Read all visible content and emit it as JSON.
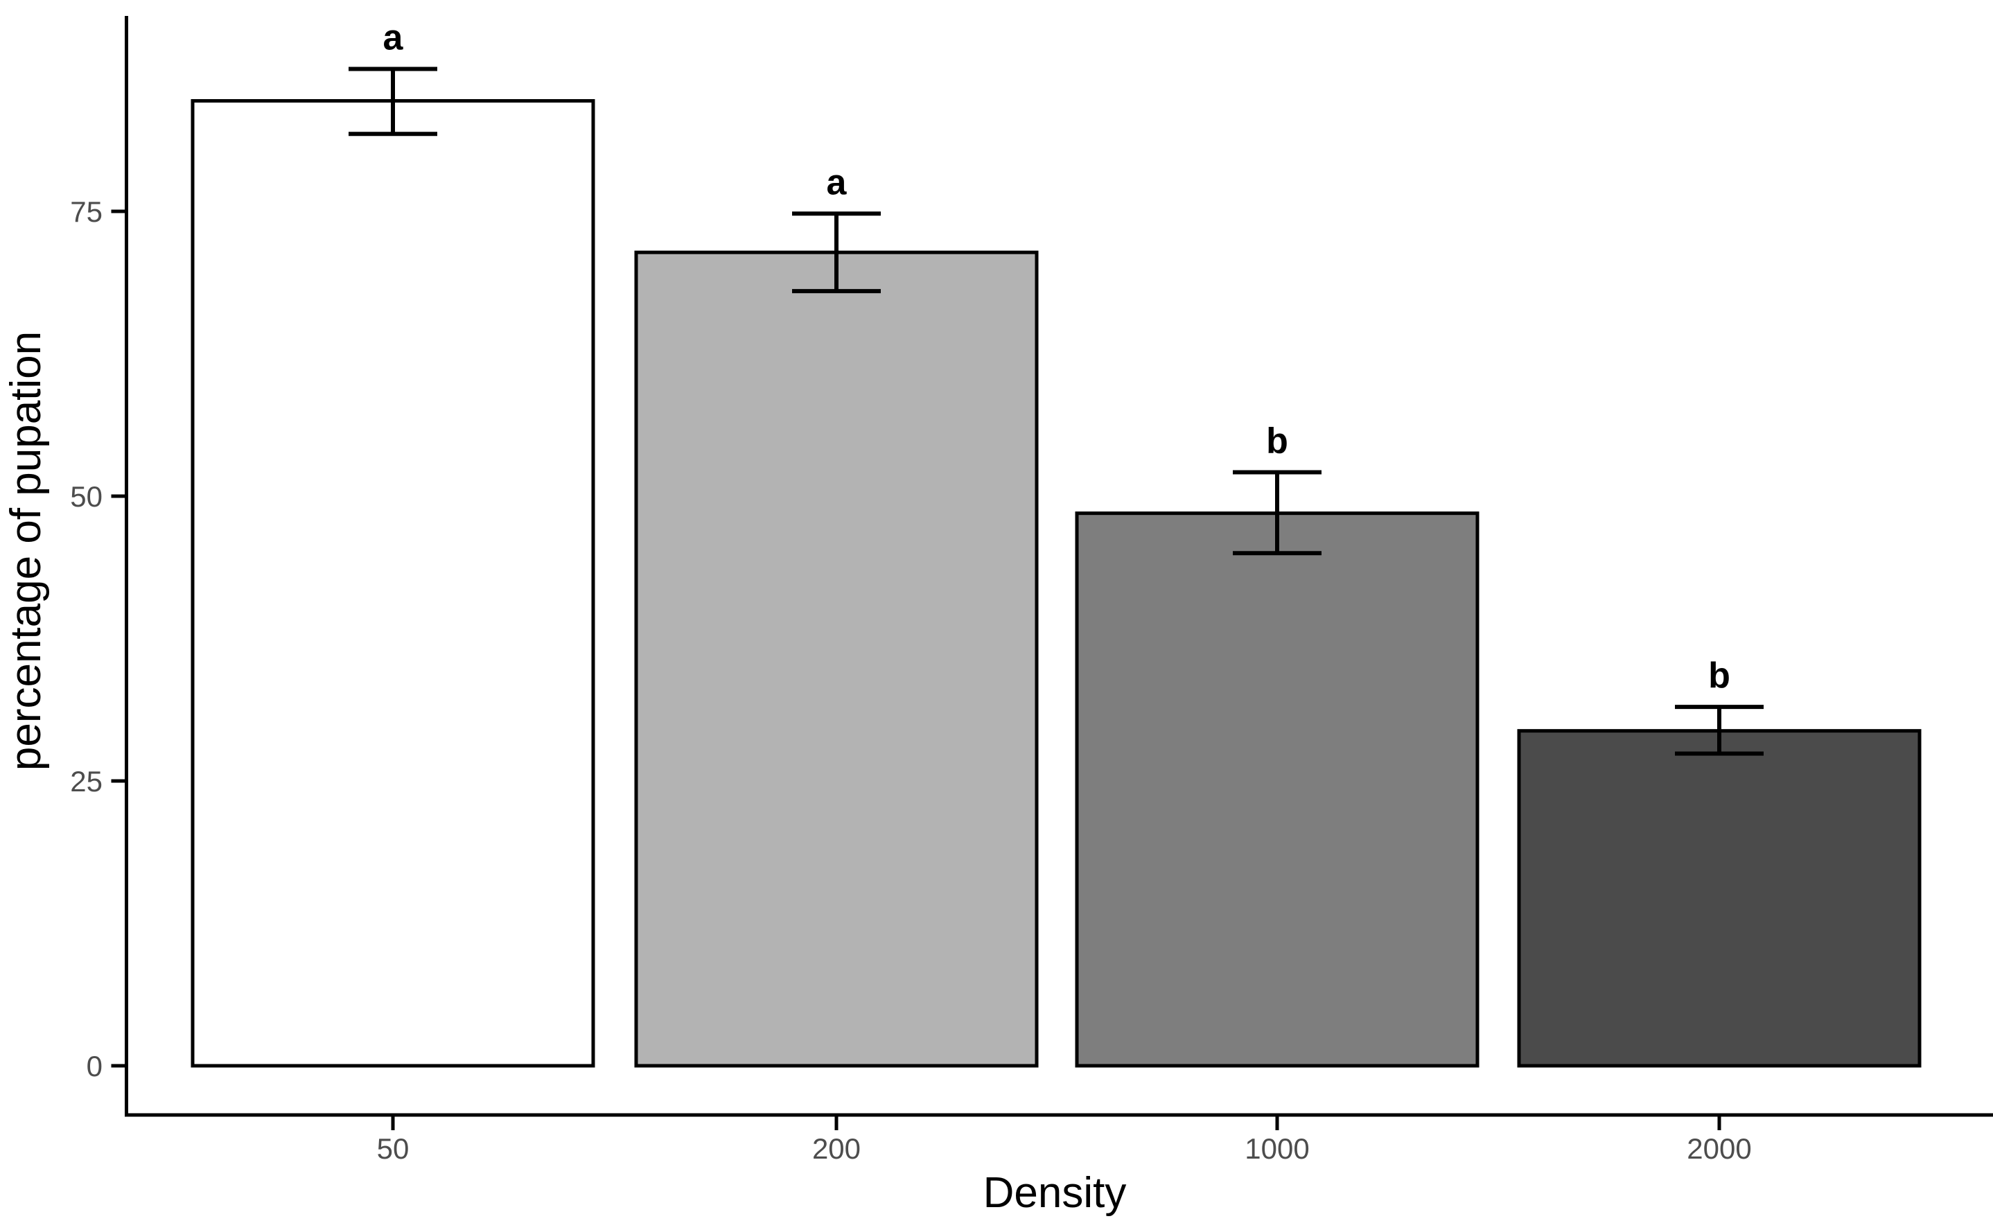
{
  "chart_data": {
    "type": "bar",
    "title": "",
    "xlabel": "Density",
    "ylabel": "percentage of pupation",
    "categories": [
      "50",
      "200",
      "1000",
      "2000"
    ],
    "series": [
      {
        "name": "percentage of pupation",
        "values": [
          84.7,
          71.4,
          48.5,
          29.4
        ],
        "error_low": [
          81.8,
          68.0,
          45.0,
          27.4
        ],
        "error_high": [
          87.5,
          74.8,
          52.1,
          31.5
        ],
        "significance_letters": [
          "a",
          "a",
          "b",
          "b"
        ],
        "bar_fills": [
          "#ffffff",
          "#b3b3b3",
          "#7e7e7e",
          "#4b4b4b"
        ]
      }
    ],
    "y_ticks": [
      0,
      25,
      50,
      75
    ],
    "ylim": [
      0,
      92
    ],
    "grid": false,
    "legend": "none",
    "bar_outline_color": "#000000",
    "error_bar_color": "#000000",
    "axis_line_color": "#000000",
    "tick_label_color": "#4d4d4d",
    "axis_title_color": "#000000",
    "sig_letter_color": "#000000",
    "background_color": "#ffffff"
  }
}
